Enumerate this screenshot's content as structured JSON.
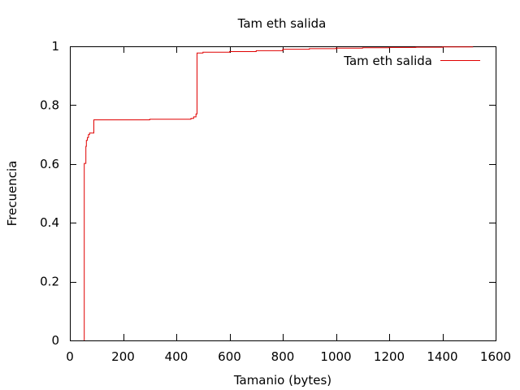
{
  "chart_data": {
    "type": "line",
    "style": "step-cdf",
    "title": "Tam eth salida",
    "xlabel": "Tamanio (bytes)",
    "ylabel": "Frecuencia",
    "xlim": [
      0,
      1600
    ],
    "ylim": [
      0,
      1
    ],
    "xticks": [
      0,
      200,
      400,
      600,
      800,
      1000,
      1200,
      1400,
      1600
    ],
    "xtick_labels": [
      "0",
      "200",
      "400",
      "600",
      "800",
      "1000",
      "1200",
      "1400",
      "1600"
    ],
    "yticks": [
      0,
      0.2,
      0.4,
      0.6,
      0.8,
      1
    ],
    "ytick_labels": [
      "0",
      "0.2",
      "0.4",
      "0.6",
      "0.8",
      "1"
    ],
    "grid": false,
    "legend_position": "top-right",
    "colors": {
      "series": "#e00000",
      "axes": "#000000"
    },
    "series": [
      {
        "name": "Tam eth salida",
        "x": [
          54,
          54,
          60,
          60,
          62,
          66,
          70,
          74,
          80,
          90,
          90,
          200,
          300,
          400,
          440,
          455,
          465,
          474,
          474,
          478,
          478,
          500,
          500,
          600,
          700,
          800,
          900,
          1000,
          1100,
          1200,
          1300,
          1400,
          1514
        ],
        "y": [
          0,
          0.602,
          0.602,
          0.66,
          0.68,
          0.69,
          0.7,
          0.705,
          0.705,
          0.705,
          0.75,
          0.75,
          0.752,
          0.752,
          0.752,
          0.755,
          0.76,
          0.762,
          0.77,
          0.77,
          0.977,
          0.977,
          0.98,
          0.982,
          0.985,
          0.99,
          0.992,
          0.994,
          0.995,
          0.996,
          0.997,
          0.998,
          0.999
        ]
      }
    ]
  }
}
